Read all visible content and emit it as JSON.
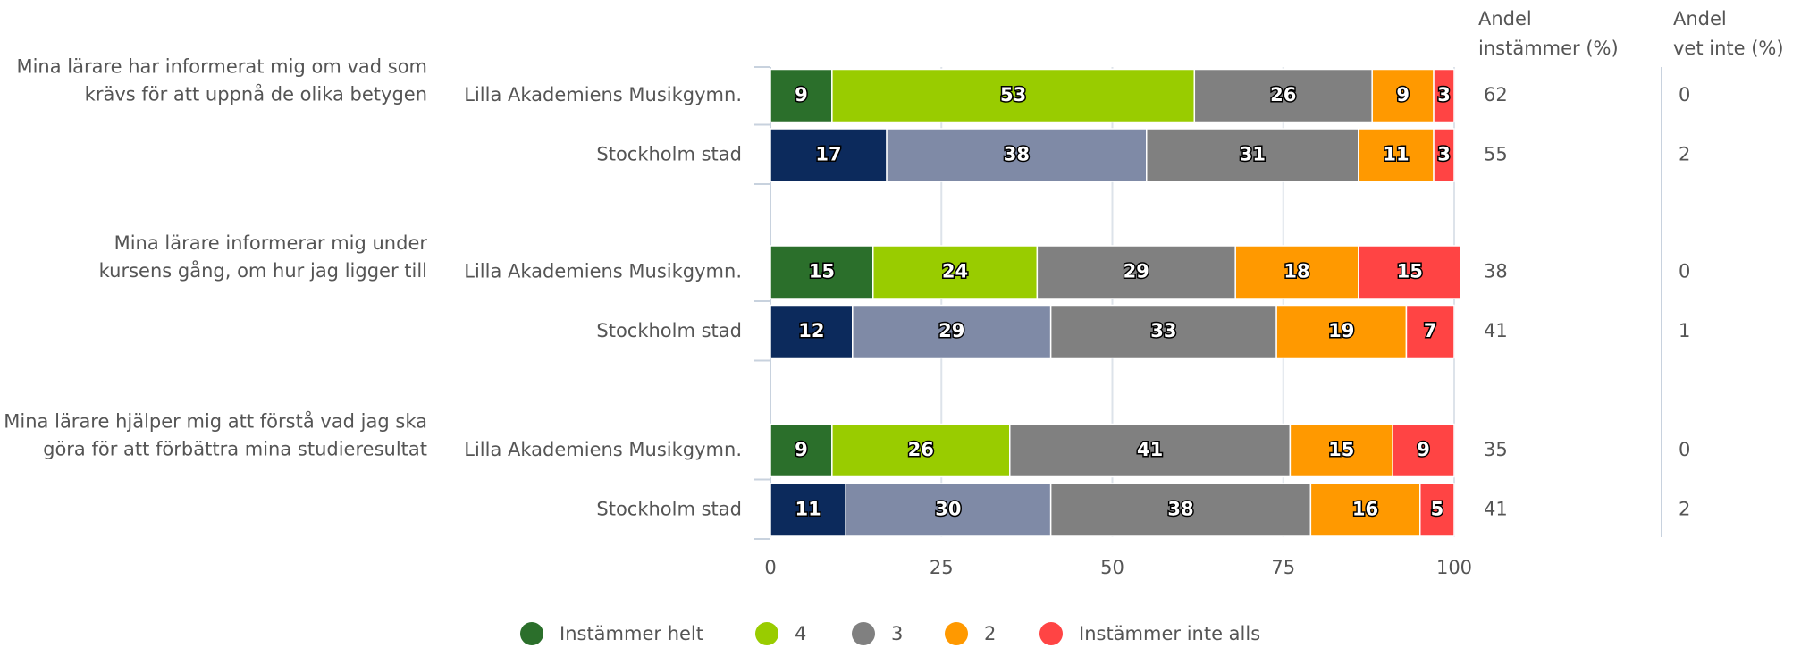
{
  "chart_data": {
    "type": "stacked-bar-horizontal",
    "groups": [
      [
        "Mina lärare har informerat mig om vad som",
        "krävs för att uppnå de olika betygen"
      ],
      [
        "Mina lärare informerar mig under",
        "kursens gång, om hur jag ligger till"
      ],
      [
        "Mina lärare hjälper mig att förstå vad jag ska",
        "göra för att förbättra mina studieresultat"
      ]
    ],
    "categories": [
      "Lilla Akademiens Musikgymn.",
      "Stockholm stad",
      "Lilla Akademiens Musikgymn.",
      "Stockholm stad",
      "Lilla Akademiens Musikgymn.",
      "Stockholm stad"
    ],
    "series": [
      {
        "name": "Instämmer helt",
        "color": "#2b6f2b",
        "colors": [
          "#2b6f2b",
          "#0c2a5c",
          "#2b6f2b",
          "#0c2a5c",
          "#2b6f2b",
          "#0c2a5c"
        ],
        "values": [
          9,
          17,
          15,
          12,
          9,
          11
        ]
      },
      {
        "name": "4",
        "color": "#99cc00",
        "colors": [
          "#99cc00",
          "#7f8aa6",
          "#99cc00",
          "#7f8aa6",
          "#99cc00",
          "#7f8aa6"
        ],
        "values": [
          53,
          38,
          24,
          29,
          26,
          30
        ]
      },
      {
        "name": "3",
        "color": "#808080",
        "colors": [
          "#808080",
          "#808080",
          "#808080",
          "#808080",
          "#808080",
          "#808080"
        ],
        "values": [
          26,
          31,
          29,
          33,
          41,
          38
        ]
      },
      {
        "name": "2",
        "color": "#ff9900",
        "colors": [
          "#ff9900",
          "#ff9900",
          "#ff9900",
          "#ff9900",
          "#ff9900",
          "#ff9900"
        ],
        "values": [
          9,
          11,
          18,
          19,
          15,
          16
        ]
      },
      {
        "name": "Instämmer inte alls",
        "color": "#ff4444",
        "colors": [
          "#ff4444",
          "#ff4444",
          "#ff4444",
          "#ff4444",
          "#ff4444",
          "#ff4444"
        ],
        "values": [
          3,
          3,
          15,
          7,
          9,
          5
        ]
      }
    ],
    "columns": [
      {
        "header": [
          "Andel",
          "instämmer (%)"
        ],
        "values": [
          62,
          55,
          38,
          41,
          35,
          41
        ]
      },
      {
        "header": [
          "Andel",
          "vet inte (%)"
        ],
        "values": [
          0,
          2,
          0,
          1,
          0,
          2
        ]
      }
    ],
    "xlim": [
      0,
      100
    ],
    "xticks": [
      0,
      25,
      50,
      75,
      100
    ],
    "grid": true,
    "legend": "bottom"
  }
}
